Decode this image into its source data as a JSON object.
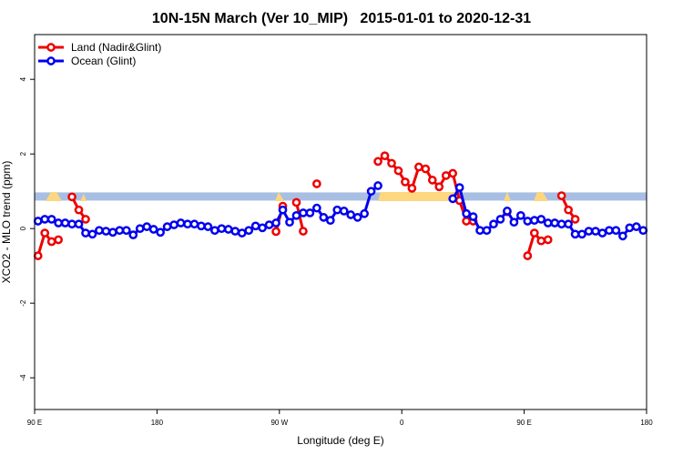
{
  "chart_data": {
    "type": "line",
    "title": "10N-15N March (Ver 10_MIP)   2015-01-01 to 2020-12-31",
    "xlabel": "Longitude (deg E)",
    "ylabel": "XCO2 - MLO trend (ppm)",
    "xlim": [
      90,
      540
    ],
    "ylim": [
      -4.85,
      5.2
    ],
    "xticks": [
      {
        "value": 90,
        "label": "90 E"
      },
      180,
      {
        "value": 270,
        "label": "90 W"
      },
      {
        "value": 360,
        "label": "0"
      },
      {
        "value": 450,
        "label": "90 E"
      },
      {
        "value": 540,
        "label": "180"
      }
    ],
    "yticks": [
      -4,
      -2,
      0,
      2,
      4
    ],
    "band": [
      0.75,
      0.97
    ],
    "band_color": "#a8bfe3",
    "legend": "top-left",
    "x": [
      92.5,
      97.5,
      102.5,
      107.5,
      112.5,
      117.5,
      122.5,
      127.5,
      132.5,
      137.5,
      142.5,
      147.5,
      152.5,
      157.5,
      162.5,
      167.5,
      172.5,
      177.5,
      182.5,
      187.5,
      192.5,
      197.5,
      202.5,
      207.5,
      212.5,
      217.5,
      222.5,
      227.5,
      232.5,
      237.5,
      242.5,
      247.5,
      252.5,
      257.5,
      262.5,
      267.5,
      272.5,
      277.5,
      282.5,
      287.5,
      292.5,
      297.5,
      302.5,
      307.5,
      312.5,
      317.5,
      322.5,
      327.5,
      332.5,
      337.5,
      342.5,
      347.5,
      352.5,
      357.5,
      362.5,
      367.5,
      372.5,
      377.5,
      382.5,
      387.5,
      392.5,
      397.5,
      402.5,
      407.5,
      412.5,
      417.5,
      422.5,
      427.5,
      432.5,
      437.5,
      442.5,
      447.5,
      452.5,
      457.5,
      462.5,
      467.5,
      472.5,
      477.5,
      482.5,
      487.5,
      492.5,
      497.5,
      502.5,
      507.5,
      512.5,
      517.5,
      522.5,
      527.5,
      532.5,
      537.5
    ],
    "series": [
      {
        "name": "Land (Nadir&Glint)",
        "color": "#ee0000",
        "values": [
          -0.73,
          -0.12,
          -0.35,
          -0.3,
          null,
          0.85,
          0.5,
          0.25,
          null,
          null,
          null,
          null,
          null,
          null,
          null,
          null,
          null,
          null,
          null,
          null,
          null,
          null,
          null,
          null,
          null,
          null,
          null,
          null,
          null,
          null,
          null,
          null,
          null,
          null,
          null,
          -0.08,
          0.6,
          null,
          0.7,
          -0.07,
          null,
          1.2,
          null,
          null,
          null,
          null,
          null,
          null,
          null,
          null,
          1.8,
          1.95,
          1.75,
          1.55,
          1.25,
          1.08,
          1.65,
          1.6,
          1.3,
          1.12,
          1.42,
          1.48,
          0.75,
          0.2,
          0.2,
          null,
          null,
          null,
          null,
          0.45,
          null,
          null,
          -0.73,
          -0.12,
          -0.33,
          -0.3,
          null,
          0.88,
          0.5,
          0.25,
          null,
          null,
          null,
          null,
          null,
          null,
          null,
          null,
          null,
          null
        ]
      },
      {
        "name": "Ocean (Glint)",
        "color": "#0000ee",
        "values": [
          0.2,
          0.25,
          0.25,
          0.15,
          0.15,
          0.12,
          0.12,
          -0.12,
          -0.15,
          -0.05,
          -0.07,
          -0.1,
          -0.05,
          -0.05,
          -0.17,
          0,
          0.05,
          -0.02,
          -0.1,
          0.05,
          0.1,
          0.15,
          0.12,
          0.12,
          0.07,
          0.05,
          -0.05,
          0,
          -0.02,
          -0.07,
          -0.12,
          -0.05,
          0.07,
          0.02,
          0.1,
          0.15,
          0.5,
          0.17,
          0.35,
          0.42,
          0.42,
          0.55,
          0.3,
          0.22,
          0.5,
          0.47,
          0.37,
          0.3,
          0.4,
          1.0,
          1.15,
          null,
          null,
          null,
          null,
          null,
          null,
          null,
          null,
          null,
          null,
          0.8,
          1.1,
          0.4,
          0.32,
          -0.05,
          -0.05,
          0.12,
          0.25,
          0.47,
          0.17,
          0.35,
          0.2,
          0.22,
          0.25,
          0.15,
          0.15,
          0.12,
          0.12,
          -0.15,
          -0.15,
          -0.07,
          -0.07,
          -0.12,
          -0.05,
          -0.05,
          -0.2,
          0.02,
          0.05,
          -0.05
        ]
      }
    ]
  }
}
